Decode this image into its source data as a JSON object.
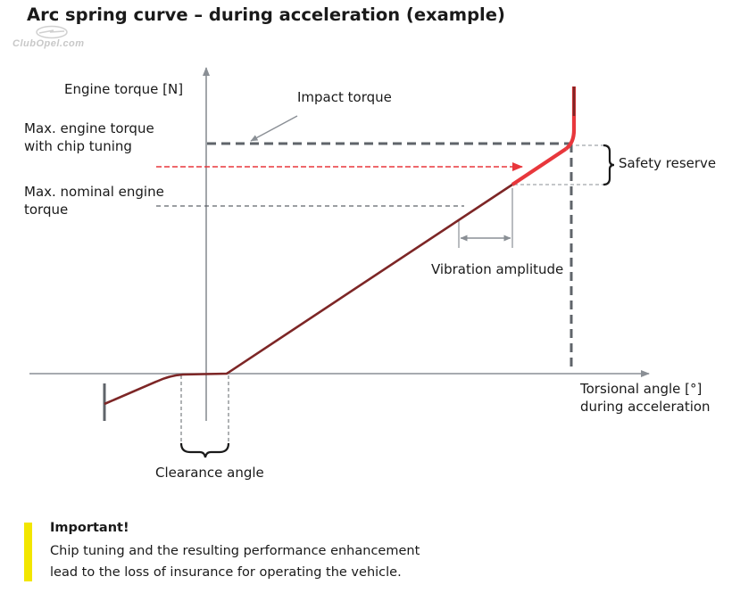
{
  "title": "Arc spring curve – during acceleration (example)",
  "watermark": "ClubOpel.com",
  "labels": {
    "y_axis": "Engine torque [N]",
    "impact_torque": "Impact torque",
    "max_chip_1": "Max. engine torque",
    "max_chip_2": "with chip tuning",
    "max_nominal_1": "Max. nominal engine",
    "max_nominal_2": "torque",
    "safety_reserve": "Safety reserve",
    "vibration_amplitude": "Vibration amplitude",
    "x_axis_1": "Torsional angle [°]",
    "x_axis_2": "during acceleration",
    "clearance_angle": "Clearance angle"
  },
  "note": {
    "heading": "Important!",
    "line1": "Chip tuning and the resulting performance enhancement",
    "line2": "lead to the loss of insurance for operating the vehicle."
  },
  "colors": {
    "curve": "#7d2626",
    "chip_segment": "#e8373c",
    "chip_arrow": "#e8373c",
    "axis": "#8a8f95",
    "dashed": "#5f646a",
    "note_bar": "#f2e600"
  }
}
